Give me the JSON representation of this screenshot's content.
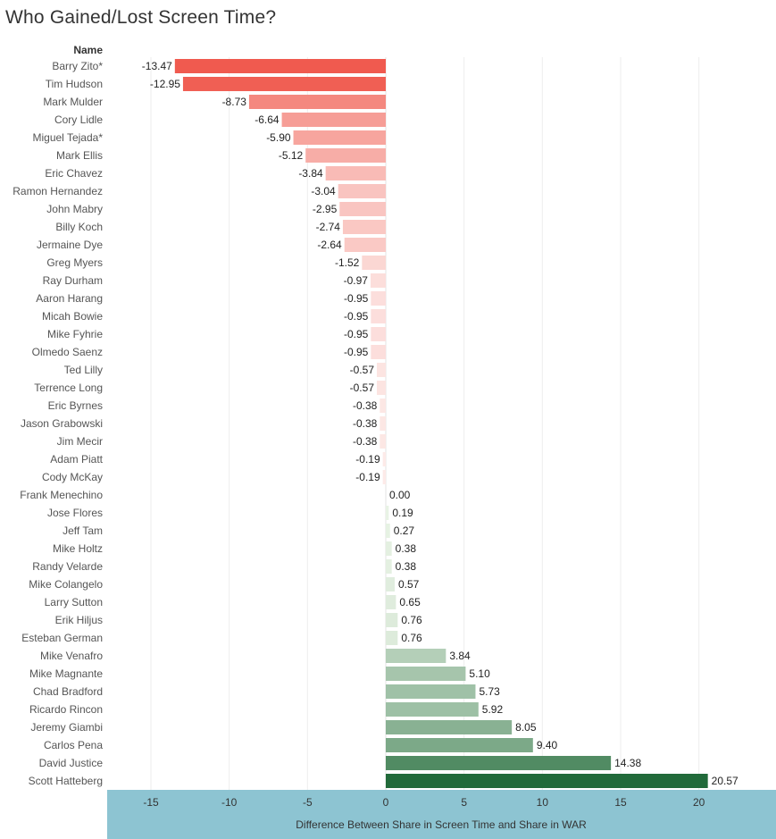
{
  "chart_data": {
    "type": "bar",
    "orientation": "horizontal",
    "title": "Who Gained/Lost Screen Time?",
    "row_header": "Name",
    "xlabel": "Difference Between Share in Screen Time and Share in WAR",
    "xlim": [
      -15,
      20.57
    ],
    "xticks": [
      -15,
      -10,
      -5,
      0,
      5,
      10,
      15,
      20
    ],
    "grid": true,
    "categories": [
      "Barry Zito*",
      "Tim Hudson",
      "Mark Mulder",
      "Cory Lidle",
      "Miguel Tejada*",
      "Mark Ellis",
      "Eric Chavez",
      "Ramon Hernandez",
      "John Mabry",
      "Billy Koch",
      "Jermaine Dye",
      "Greg Myers",
      "Ray Durham",
      "Aaron Harang",
      "Micah Bowie",
      "Mike Fyhrie",
      "Olmedo Saenz",
      "Ted Lilly",
      "Terrence Long",
      "Eric Byrnes",
      "Jason Grabowski",
      "Jim Mecir",
      "Adam Piatt",
      "Cody McKay",
      "Frank Menechino",
      "Jose Flores",
      "Jeff Tam",
      "Mike Holtz",
      "Randy Velarde",
      "Mike Colangelo",
      "Larry Sutton",
      "Erik Hiljus",
      "Esteban German",
      "Mike Venafro",
      "Mike Magnante",
      "Chad Bradford",
      "Ricardo Rincon",
      "Jeremy Giambi",
      "Carlos Pena",
      "David Justice",
      "Scott Hatteberg"
    ],
    "values": [
      -13.47,
      -12.95,
      -8.73,
      -6.64,
      -5.9,
      -5.12,
      -3.84,
      -3.04,
      -2.95,
      -2.74,
      -2.64,
      -1.52,
      -0.97,
      -0.95,
      -0.95,
      -0.95,
      -0.95,
      -0.57,
      -0.57,
      -0.38,
      -0.38,
      -0.38,
      -0.19,
      -0.19,
      0.0,
      0.19,
      0.27,
      0.38,
      0.38,
      0.57,
      0.65,
      0.76,
      0.76,
      3.84,
      5.1,
      5.73,
      5.92,
      8.05,
      9.4,
      14.38,
      20.57
    ],
    "value_labels": [
      "-13.47",
      "-12.95",
      "-8.73",
      "-6.64",
      "-5.90",
      "-5.12",
      "-3.84",
      "-3.04",
      "-2.95",
      "-2.74",
      "-2.64",
      "-1.52",
      "-0.97",
      "-0.95",
      "-0.95",
      "-0.95",
      "-0.95",
      "-0.57",
      "-0.57",
      "-0.38",
      "-0.38",
      "-0.38",
      "-0.19",
      "-0.19",
      "0.00",
      "0.19",
      "0.27",
      "0.38",
      "0.38",
      "0.57",
      "0.65",
      "0.76",
      "0.76",
      "3.84",
      "5.10",
      "5.73",
      "5.92",
      "8.05",
      "9.40",
      "14.38",
      "20.57"
    ],
    "color_scale": {
      "negative_max": "#f05a4f",
      "negative_min": "#fdeeec",
      "positive_min": "#eef7ea",
      "positive_max": "#216a3a"
    },
    "axis_band_color": "#8dc4d2"
  }
}
